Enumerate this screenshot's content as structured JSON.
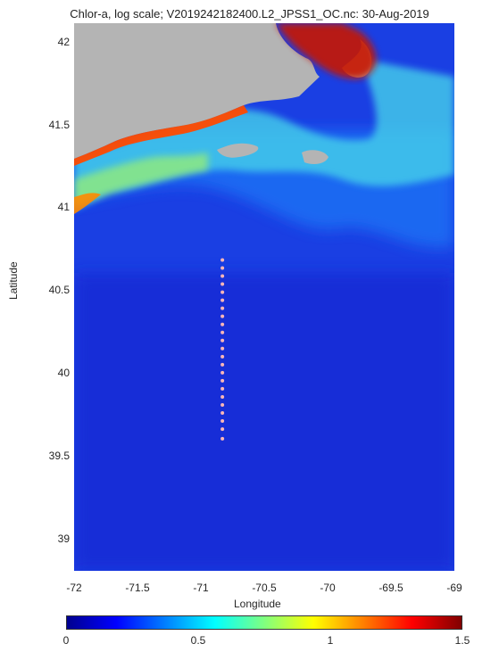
{
  "title": "Chlor-a, log scale; V2019242182400.L2_JPSS1_OC.nc: 30-Aug-2019",
  "colors": {
    "land": "#b4b4b4",
    "ocean_deep": "#1328d8",
    "ocean_mid": "#1f5cf2",
    "coastal": "#47c8ee",
    "high": "#ff7a00",
    "max": "#8c0000",
    "station": "#f9b6b6"
  },
  "chart_data": {
    "type": "heatmap",
    "xlabel": "Longitude",
    "ylabel": "Latitude",
    "xlim": [
      -72,
      -69
    ],
    "ylim": [
      38.8,
      42.2
    ],
    "x_ticks": [
      "-72",
      "-71.5",
      "-71",
      "-70.5",
      "-70",
      "-69.5",
      "-69"
    ],
    "y_ticks": [
      "42",
      "41.5",
      "41",
      "40.5",
      "40",
      "39.5",
      "39"
    ],
    "colorbar": {
      "min": 0,
      "max": 1.5,
      "ticks": [
        "0",
        "0.5",
        "1",
        "1.5"
      ]
    },
    "stations": {
      "longitude": -70.83,
      "latitudes": [
        40.73,
        40.68,
        40.63,
        40.58,
        40.53,
        40.48,
        40.43,
        40.38,
        40.33,
        40.28,
        40.23,
        40.18,
        40.13,
        40.08,
        40.03,
        39.98,
        39.93,
        39.88,
        39.83,
        39.78,
        39.73,
        39.68,
        39.62
      ]
    }
  }
}
